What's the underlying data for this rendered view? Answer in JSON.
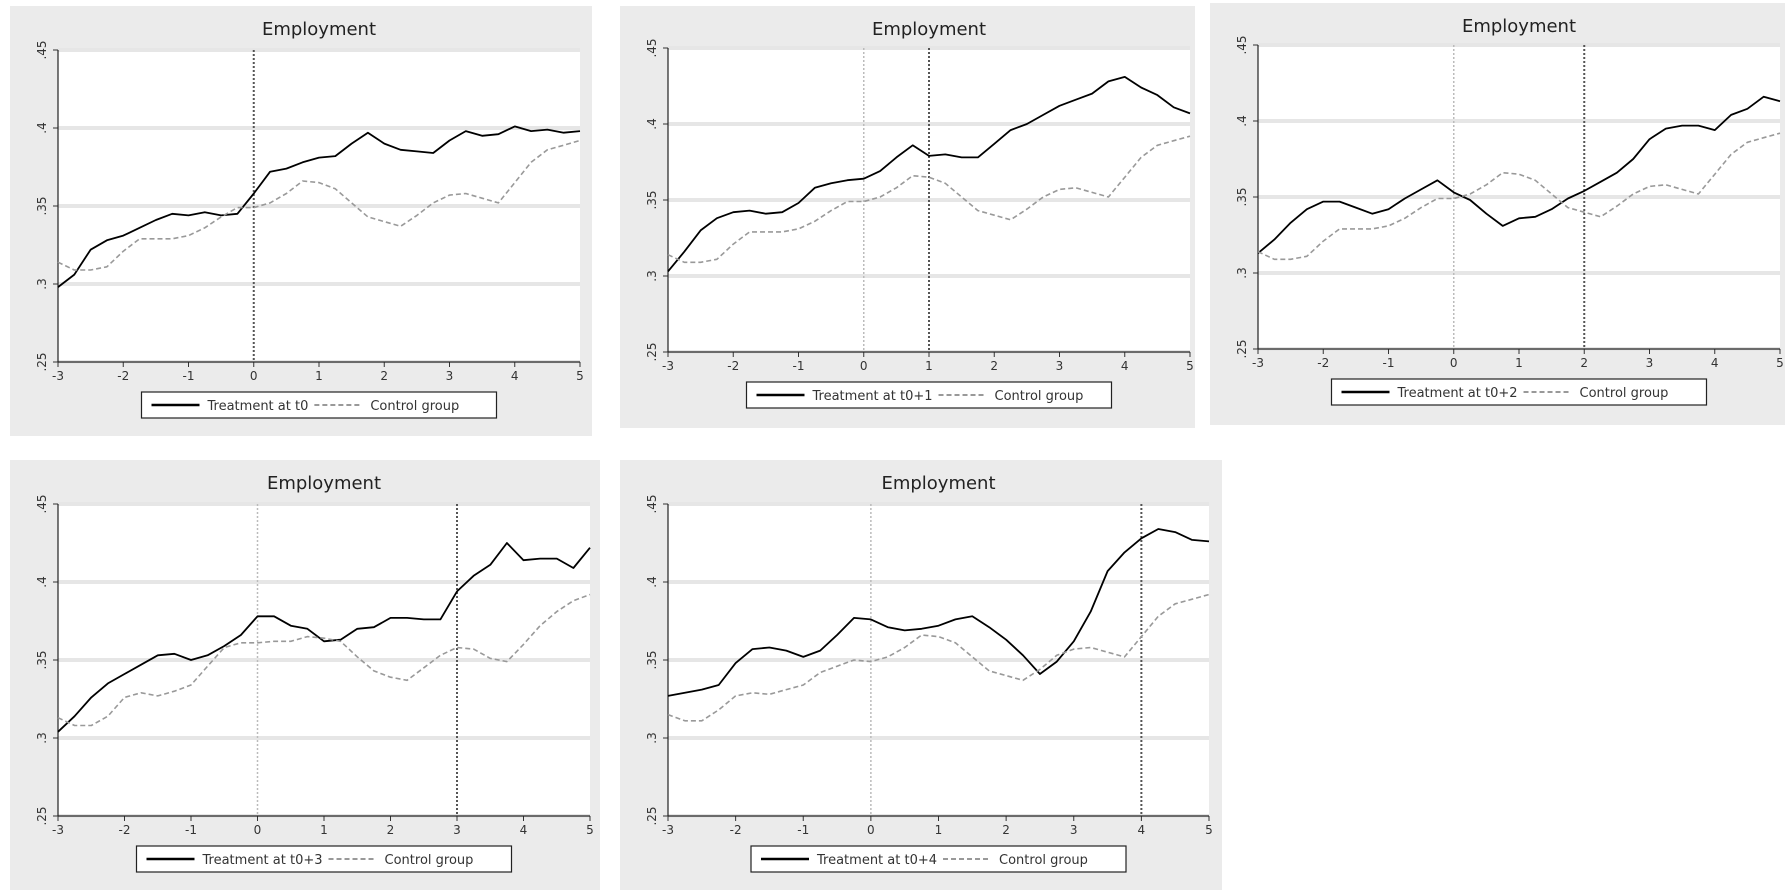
{
  "chart_data": [
    {
      "type": "line",
      "title": "Employment",
      "xlim": [
        -3,
        5
      ],
      "ylim": [
        0.25,
        0.45
      ],
      "x_ticks": [
        "-3",
        "-2",
        "-1",
        "0",
        "1",
        "2",
        "3",
        "4",
        "5"
      ],
      "y_ticks": [
        ".25",
        ".3",
        ".35",
        ".4",
        ".45"
      ],
      "vlines": [
        0
      ],
      "legend_position": "bottom",
      "series": [
        {
          "name": "Treatment at t0",
          "style": "solid",
          "color": "#000000",
          "x": [
            -3,
            -2.75,
            -2.5,
            -2.25,
            -2,
            -1.75,
            -1.5,
            -1.25,
            -1,
            -0.75,
            -0.5,
            -0.25,
            0,
            0.25,
            0.5,
            0.75,
            1,
            1.25,
            1.5,
            1.75,
            2,
            2.25,
            2.5,
            2.75,
            3,
            3.25,
            3.5,
            3.75,
            4,
            4.25,
            4.5,
            4.75,
            5
          ],
          "values": [
            0.298,
            0.306,
            0.322,
            0.328,
            0.331,
            0.336,
            0.341,
            0.345,
            0.344,
            0.346,
            0.344,
            0.345,
            0.358,
            0.372,
            0.374,
            0.378,
            0.381,
            0.382,
            0.39,
            0.397,
            0.39,
            0.386,
            0.385,
            0.384,
            0.392,
            0.398,
            0.395,
            0.396,
            0.401,
            0.398,
            0.399,
            0.397,
            0.398
          ]
        },
        {
          "name": "Control group",
          "style": "dashed",
          "color": "#999999",
          "x": [
            -3,
            -2.75,
            -2.5,
            -2.25,
            -2,
            -1.75,
            -1.5,
            -1.25,
            -1,
            -0.75,
            -0.5,
            -0.25,
            0,
            0.25,
            0.5,
            0.75,
            1,
            1.25,
            1.5,
            1.75,
            2,
            2.25,
            2.5,
            2.75,
            3,
            3.25,
            3.5,
            3.75,
            4,
            4.25,
            4.5,
            4.75,
            5
          ],
          "values": [
            0.314,
            0.309,
            0.309,
            0.311,
            0.321,
            0.329,
            0.329,
            0.329,
            0.331,
            0.336,
            0.343,
            0.349,
            0.349,
            0.352,
            0.358,
            0.366,
            0.365,
            0.361,
            0.352,
            0.343,
            0.34,
            0.337,
            0.344,
            0.352,
            0.357,
            0.358,
            0.355,
            0.352,
            0.365,
            0.378,
            0.386,
            0.389,
            0.392
          ]
        }
      ]
    },
    {
      "type": "line",
      "title": "Employment",
      "xlim": [
        -3,
        5
      ],
      "ylim": [
        0.25,
        0.45
      ],
      "x_ticks": [
        "-3",
        "-2",
        "-1",
        "0",
        "1",
        "2",
        "3",
        "4",
        "5"
      ],
      "y_ticks": [
        ".25",
        ".3",
        ".35",
        ".4",
        ".45"
      ],
      "vlines": [
        0,
        1
      ],
      "legend_position": "bottom",
      "series": [
        {
          "name": "Treatment at t0+1",
          "style": "solid",
          "color": "#000000",
          "x": [
            -3,
            -2.75,
            -2.5,
            -2.25,
            -2,
            -1.75,
            -1.5,
            -1.25,
            -1,
            -0.75,
            -0.5,
            -0.25,
            0,
            0.25,
            0.5,
            0.75,
            1,
            1.25,
            1.5,
            1.75,
            2,
            2.25,
            2.5,
            2.75,
            3,
            3.25,
            3.5,
            3.75,
            4,
            4.25,
            4.5,
            4.75,
            5
          ],
          "values": [
            0.303,
            0.316,
            0.33,
            0.338,
            0.342,
            0.343,
            0.341,
            0.342,
            0.348,
            0.358,
            0.361,
            0.363,
            0.364,
            0.369,
            0.378,
            0.386,
            0.379,
            0.38,
            0.378,
            0.378,
            0.387,
            0.396,
            0.4,
            0.406,
            0.412,
            0.416,
            0.42,
            0.428,
            0.431,
            0.424,
            0.419,
            0.411,
            0.407
          ]
        },
        {
          "name": "Control group",
          "style": "dashed",
          "color": "#999999",
          "x": [
            -3,
            -2.75,
            -2.5,
            -2.25,
            -2,
            -1.75,
            -1.5,
            -1.25,
            -1,
            -0.75,
            -0.5,
            -0.25,
            0,
            0.25,
            0.5,
            0.75,
            1,
            1.25,
            1.5,
            1.75,
            2,
            2.25,
            2.5,
            2.75,
            3,
            3.25,
            3.5,
            3.75,
            4,
            4.25,
            4.5,
            4.75,
            5
          ],
          "values": [
            0.314,
            0.309,
            0.309,
            0.311,
            0.321,
            0.329,
            0.329,
            0.329,
            0.331,
            0.336,
            0.343,
            0.349,
            0.349,
            0.352,
            0.358,
            0.366,
            0.365,
            0.361,
            0.352,
            0.343,
            0.34,
            0.337,
            0.344,
            0.352,
            0.357,
            0.358,
            0.355,
            0.352,
            0.365,
            0.378,
            0.386,
            0.389,
            0.392
          ]
        }
      ]
    },
    {
      "type": "line",
      "title": "Employment",
      "xlim": [
        -3,
        5
      ],
      "ylim": [
        0.25,
        0.45
      ],
      "x_ticks": [
        "-3",
        "-2",
        "-1",
        "0",
        "1",
        "2",
        "3",
        "4",
        "5"
      ],
      "y_ticks": [
        ".25",
        ".3",
        ".35",
        ".4",
        ".45"
      ],
      "vlines": [
        0,
        2
      ],
      "legend_position": "bottom",
      "series": [
        {
          "name": "Treatment at t0+2",
          "style": "solid",
          "color": "#000000",
          "x": [
            -3,
            -2.75,
            -2.5,
            -2.25,
            -2,
            -1.75,
            -1.5,
            -1.25,
            -1,
            -0.75,
            -0.5,
            -0.25,
            0,
            0.25,
            0.5,
            0.75,
            1,
            1.25,
            1.5,
            1.75,
            2,
            2.25,
            2.5,
            2.75,
            3,
            3.25,
            3.5,
            3.75,
            4,
            4.25,
            4.5,
            4.75,
            5
          ],
          "values": [
            0.313,
            0.322,
            0.333,
            0.342,
            0.347,
            0.347,
            0.343,
            0.339,
            0.342,
            0.349,
            0.355,
            0.361,
            0.353,
            0.348,
            0.339,
            0.331,
            0.336,
            0.337,
            0.342,
            0.349,
            0.354,
            0.36,
            0.366,
            0.375,
            0.388,
            0.395,
            0.397,
            0.397,
            0.394,
            0.404,
            0.408,
            0.416,
            0.413
          ]
        },
        {
          "name": "Control group",
          "style": "dashed",
          "color": "#999999",
          "x": [
            -3,
            -2.75,
            -2.5,
            -2.25,
            -2,
            -1.75,
            -1.5,
            -1.25,
            -1,
            -0.75,
            -0.5,
            -0.25,
            0,
            0.25,
            0.5,
            0.75,
            1,
            1.25,
            1.5,
            1.75,
            2,
            2.25,
            2.5,
            2.75,
            3,
            3.25,
            3.5,
            3.75,
            4,
            4.25,
            4.5,
            4.75,
            5
          ],
          "values": [
            0.314,
            0.309,
            0.309,
            0.311,
            0.321,
            0.329,
            0.329,
            0.329,
            0.331,
            0.336,
            0.343,
            0.349,
            0.349,
            0.352,
            0.358,
            0.366,
            0.365,
            0.361,
            0.352,
            0.343,
            0.34,
            0.337,
            0.344,
            0.352,
            0.357,
            0.358,
            0.355,
            0.352,
            0.365,
            0.378,
            0.386,
            0.389,
            0.392
          ]
        }
      ]
    },
    {
      "type": "line",
      "title": "Employment",
      "xlim": [
        -3,
        5
      ],
      "ylim": [
        0.25,
        0.45
      ],
      "x_ticks": [
        "-3",
        "-2",
        "-1",
        "0",
        "1",
        "2",
        "3",
        "4",
        "5"
      ],
      "y_ticks": [
        ".25",
        ".3",
        ".35",
        ".4",
        ".45"
      ],
      "vlines": [
        0,
        3
      ],
      "legend_position": "bottom",
      "series": [
        {
          "name": "Treatment at t0+3",
          "style": "solid",
          "color": "#000000",
          "x": [
            -3,
            -2.75,
            -2.5,
            -2.25,
            -2,
            -1.75,
            -1.5,
            -1.25,
            -1,
            -0.75,
            -0.5,
            -0.25,
            0,
            0.25,
            0.5,
            0.75,
            1,
            1.25,
            1.5,
            1.75,
            2,
            2.25,
            2.5,
            2.75,
            3,
            3.25,
            3.5,
            3.75,
            4,
            4.25,
            4.5,
            4.75,
            5
          ],
          "values": [
            0.304,
            0.314,
            0.326,
            0.335,
            0.341,
            0.347,
            0.353,
            0.354,
            0.35,
            0.353,
            0.359,
            0.366,
            0.378,
            0.378,
            0.372,
            0.37,
            0.362,
            0.363,
            0.37,
            0.371,
            0.377,
            0.377,
            0.376,
            0.376,
            0.394,
            0.404,
            0.411,
            0.425,
            0.414,
            0.415,
            0.415,
            0.409,
            0.422
          ]
        },
        {
          "name": "Control group",
          "style": "dashed",
          "color": "#999999",
          "x": [
            -3,
            -2.75,
            -2.5,
            -2.25,
            -2,
            -1.75,
            -1.5,
            -1.25,
            -1,
            -0.75,
            -0.5,
            -0.25,
            0,
            0.25,
            0.5,
            0.75,
            1,
            1.25,
            1.5,
            1.75,
            2,
            2.25,
            2.5,
            2.75,
            3,
            3.25,
            3.5,
            3.75,
            4,
            4.25,
            4.5,
            4.75,
            5
          ],
          "values": [
            0.313,
            0.308,
            0.308,
            0.314,
            0.326,
            0.329,
            0.327,
            0.33,
            0.334,
            0.346,
            0.358,
            0.361,
            0.361,
            0.362,
            0.362,
            0.365,
            0.364,
            0.362,
            0.352,
            0.343,
            0.339,
            0.337,
            0.345,
            0.353,
            0.358,
            0.357,
            0.351,
            0.349,
            0.36,
            0.372,
            0.381,
            0.388,
            0.392
          ]
        }
      ]
    },
    {
      "type": "line",
      "title": "Employment",
      "xlim": [
        -3,
        5
      ],
      "ylim": [
        0.25,
        0.45
      ],
      "x_ticks": [
        "-3",
        "-2",
        "-1",
        "0",
        "1",
        "2",
        "3",
        "4",
        "5"
      ],
      "y_ticks": [
        ".25",
        ".3",
        ".35",
        ".4",
        ".45"
      ],
      "vlines": [
        0,
        4
      ],
      "legend_position": "bottom",
      "series": [
        {
          "name": "Treatment at t0+4",
          "style": "solid",
          "color": "#000000",
          "x": [
            -3,
            -2.75,
            -2.5,
            -2.25,
            -2,
            -1.75,
            -1.5,
            -1.25,
            -1,
            -0.75,
            -0.5,
            -0.25,
            0,
            0.25,
            0.5,
            0.75,
            1,
            1.25,
            1.5,
            1.75,
            2,
            2.25,
            2.5,
            2.75,
            3,
            3.25,
            3.5,
            3.75,
            4,
            4.25,
            4.5,
            4.75,
            5
          ],
          "values": [
            0.327,
            0.329,
            0.331,
            0.334,
            0.348,
            0.357,
            0.358,
            0.356,
            0.352,
            0.356,
            0.366,
            0.377,
            0.376,
            0.371,
            0.369,
            0.37,
            0.372,
            0.376,
            0.378,
            0.371,
            0.363,
            0.353,
            0.341,
            0.349,
            0.362,
            0.381,
            0.407,
            0.419,
            0.428,
            0.434,
            0.432,
            0.427,
            0.426
          ]
        },
        {
          "name": "Control group",
          "style": "dashed",
          "color": "#999999",
          "x": [
            -3,
            -2.75,
            -2.5,
            -2.25,
            -2,
            -1.75,
            -1.5,
            -1.25,
            -1,
            -0.75,
            -0.5,
            -0.25,
            0,
            0.25,
            0.5,
            0.75,
            1,
            1.25,
            1.5,
            1.75,
            2,
            2.25,
            2.5,
            2.75,
            3,
            3.25,
            3.5,
            3.75,
            4,
            4.25,
            4.5,
            4.75,
            5
          ],
          "values": [
            0.315,
            0.311,
            0.311,
            0.318,
            0.327,
            0.329,
            0.328,
            0.331,
            0.334,
            0.342,
            0.346,
            0.35,
            0.349,
            0.352,
            0.358,
            0.366,
            0.365,
            0.361,
            0.352,
            0.343,
            0.34,
            0.337,
            0.344,
            0.353,
            0.357,
            0.358,
            0.355,
            0.352,
            0.365,
            0.378,
            0.386,
            0.389,
            0.392
          ]
        }
      ]
    }
  ]
}
